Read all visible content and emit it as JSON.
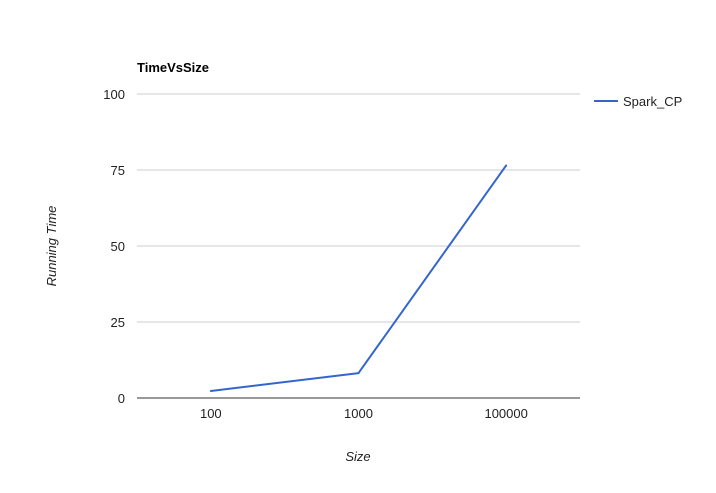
{
  "chart_data": {
    "type": "line",
    "title": "TimeVsSize",
    "xlabel": "Size",
    "ylabel": "Running Time",
    "categories": [
      "100",
      "1000",
      "100000"
    ],
    "series": [
      {
        "name": "Spark_CP",
        "values": [
          2.3,
          8.2,
          76.5
        ],
        "color": "#3366cc"
      }
    ],
    "ylim": [
      0,
      100
    ],
    "yticks": [
      0,
      25,
      50,
      75,
      100
    ],
    "grid": true,
    "legend_position": "right"
  }
}
